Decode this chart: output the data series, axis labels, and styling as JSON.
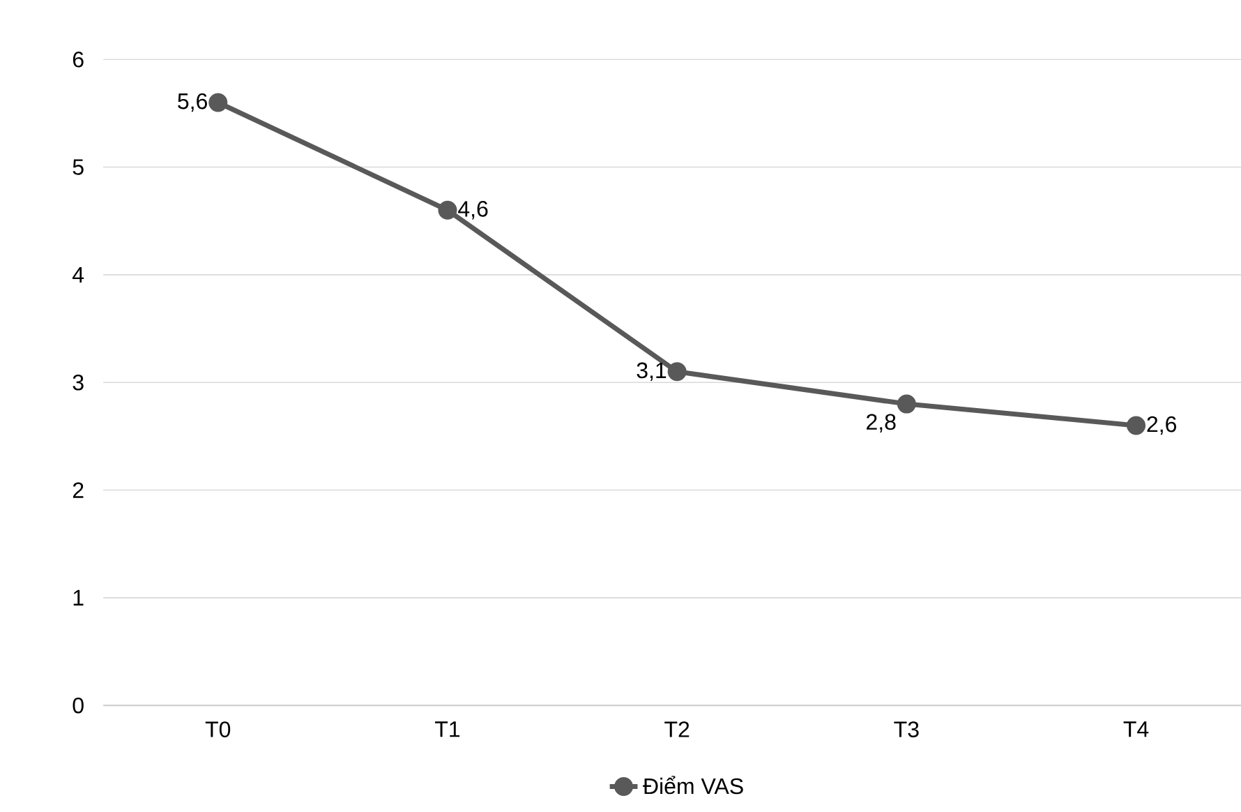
{
  "chart_data": {
    "type": "line",
    "categories": [
      "T0",
      "T1",
      "T2",
      "T3",
      "T4"
    ],
    "series": [
      {
        "name": "Điểm VAS",
        "color": "#595959",
        "values": [
          5.6,
          4.6,
          3.1,
          2.8,
          2.6
        ],
        "value_labels": [
          "5,6",
          "4,6",
          "3,1",
          "2,8",
          "2,6"
        ]
      }
    ],
    "ylim": [
      0,
      6
    ],
    "yticks": [
      0,
      1,
      2,
      3,
      4,
      5,
      6
    ],
    "grid": "y",
    "legend": "bottom",
    "marker": "circle",
    "line_style": "solid"
  }
}
